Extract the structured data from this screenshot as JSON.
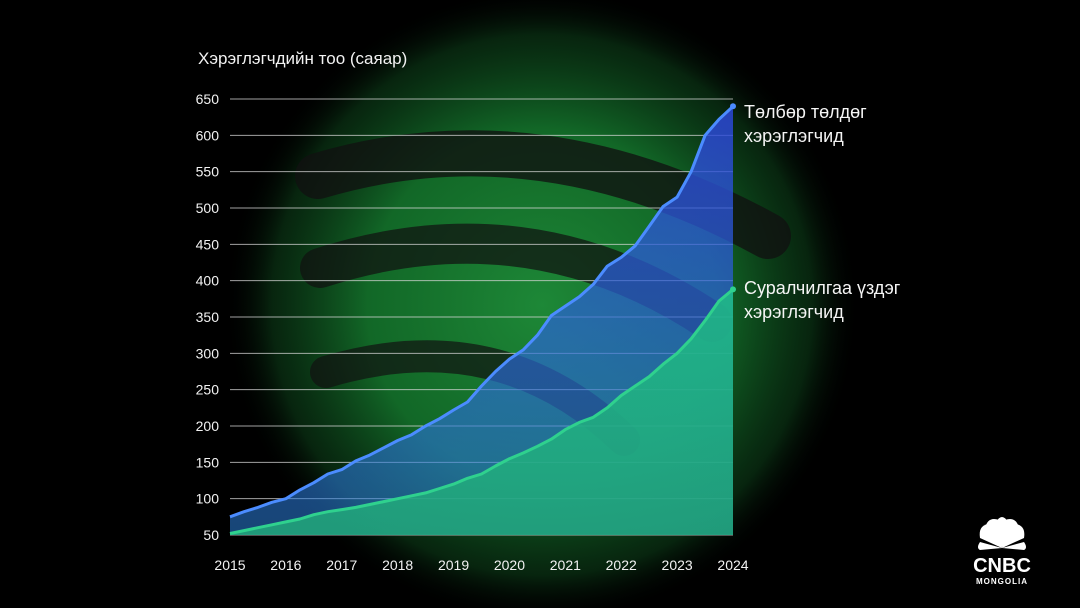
{
  "chart_data": {
    "type": "area",
    "ylabel": "Хэрэглэгчдийн тоо (саяар)",
    "ylim": [
      50,
      650
    ],
    "yticks": [
      50,
      100,
      150,
      200,
      250,
      300,
      350,
      400,
      450,
      500,
      550,
      600,
      650
    ],
    "xlim": [
      2015,
      2024
    ],
    "xticks": [
      2015,
      2016,
      2017,
      2018,
      2019,
      2020,
      2021,
      2022,
      2023,
      2024
    ],
    "grid": true,
    "legend": "right-inline",
    "series": [
      {
        "name": "Төлбөр төлдөг хэрэглэгчид",
        "color": "#4b8cff",
        "x": [
          2015.0,
          2015.25,
          2015.5,
          2015.75,
          2016.0,
          2016.25,
          2016.5,
          2016.75,
          2017.0,
          2017.25,
          2017.5,
          2017.75,
          2018.0,
          2018.25,
          2018.5,
          2018.75,
          2019.0,
          2019.25,
          2019.5,
          2019.75,
          2020.0,
          2020.25,
          2020.5,
          2020.75,
          2021.0,
          2021.25,
          2021.5,
          2021.75,
          2022.0,
          2022.25,
          2022.5,
          2022.75,
          2023.0,
          2023.25,
          2023.5,
          2023.75,
          2024.0
        ],
        "values": [
          75,
          82,
          88,
          95,
          100,
          112,
          122,
          134,
          140,
          152,
          160,
          170,
          180,
          188,
          200,
          210,
          222,
          233,
          255,
          275,
          292,
          305,
          325,
          352,
          365,
          378,
          395,
          420,
          432,
          448,
          475,
          502,
          515,
          550,
          600,
          622,
          640
        ]
      },
      {
        "name": "Суралчилгаа үздэг хэрэглэгчид",
        "color": "#2fd18e",
        "x": [
          2015.0,
          2015.25,
          2015.5,
          2015.75,
          2016.0,
          2016.25,
          2016.5,
          2016.75,
          2017.0,
          2017.25,
          2017.5,
          2017.75,
          2018.0,
          2018.25,
          2018.5,
          2018.75,
          2019.0,
          2019.25,
          2019.5,
          2019.75,
          2020.0,
          2020.25,
          2020.5,
          2020.75,
          2021.0,
          2021.25,
          2021.5,
          2021.75,
          2022.0,
          2022.25,
          2022.5,
          2022.75,
          2023.0,
          2023.25,
          2023.5,
          2023.75,
          2024.0
        ],
        "values": [
          52,
          56,
          60,
          64,
          68,
          72,
          78,
          82,
          85,
          88,
          92,
          96,
          100,
          104,
          108,
          114,
          120,
          128,
          134,
          145,
          155,
          163,
          172,
          182,
          195,
          205,
          212,
          225,
          242,
          255,
          268,
          285,
          300,
          320,
          345,
          372,
          388
        ]
      }
    ]
  },
  "brand": {
    "logo_name": "CNBC",
    "logo_sub": "MONGOLIA"
  }
}
